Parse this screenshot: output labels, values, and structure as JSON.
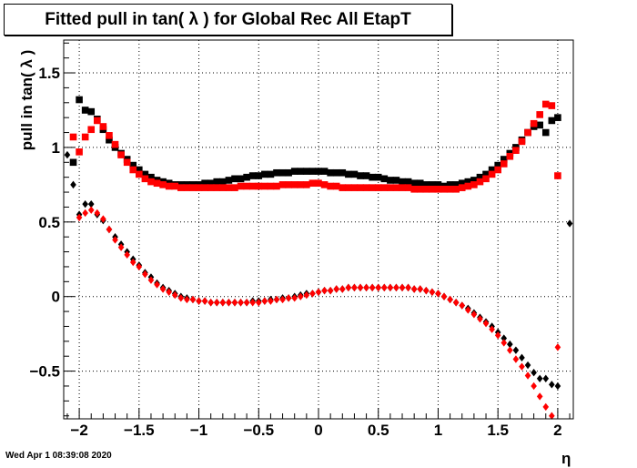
{
  "title": "Fitted pull in tan( λ ) for Global Rec All EtapT",
  "timestamp": "Wed Apr  1 08:39:08 2020",
  "chart_data": {
    "type": "scatter",
    "title": "Fitted pull in tan( λ ) for Global Rec All EtapT",
    "xlabel": "η",
    "ylabel": "pull in tan( λ )",
    "xlim": [
      -2.13,
      2.13
    ],
    "ylim": [
      -0.82,
      1.72
    ],
    "grid": true,
    "x_ticks": [
      -2,
      -1.5,
      -1,
      -0.5,
      0,
      0.5,
      1,
      1.5,
      2
    ],
    "x_tick_labels": [
      "−2",
      "−1.5",
      "−1",
      "−0.5",
      "0",
      "0.5",
      "1",
      "1.5",
      "2"
    ],
    "y_ticks": [
      -0.5,
      0,
      0.5,
      1,
      1.5
    ],
    "y_tick_labels": [
      "−0.5",
      "0",
      "0.5",
      "1",
      "1.5"
    ],
    "x": [
      -2.1,
      -2.05,
      -2.0,
      -1.95,
      -1.9,
      -1.85,
      -1.8,
      -1.75,
      -1.7,
      -1.65,
      -1.6,
      -1.55,
      -1.5,
      -1.45,
      -1.4,
      -1.35,
      -1.3,
      -1.25,
      -1.2,
      -1.15,
      -1.1,
      -1.05,
      -1.0,
      -0.95,
      -0.9,
      -0.85,
      -0.8,
      -0.75,
      -0.7,
      -0.65,
      -0.6,
      -0.55,
      -0.5,
      -0.45,
      -0.4,
      -0.35,
      -0.3,
      -0.25,
      -0.2,
      -0.15,
      -0.1,
      -0.05,
      0.0,
      0.05,
      0.1,
      0.15,
      0.2,
      0.25,
      0.3,
      0.35,
      0.4,
      0.45,
      0.5,
      0.55,
      0.6,
      0.65,
      0.7,
      0.75,
      0.8,
      0.85,
      0.9,
      0.95,
      1.0,
      1.05,
      1.1,
      1.15,
      1.2,
      1.25,
      1.3,
      1.35,
      1.4,
      1.45,
      1.5,
      1.55,
      1.6,
      1.65,
      1.7,
      1.75,
      1.8,
      1.85,
      1.9,
      1.95,
      2.0,
      2.05,
      2.1
    ],
    "series": [
      {
        "color": "#000000",
        "marker": "square",
        "values": [
          null,
          0.9,
          1.32,
          1.25,
          1.24,
          1.19,
          1.12,
          1.05,
          1.0,
          0.96,
          0.92,
          0.88,
          0.85,
          0.82,
          0.8,
          0.78,
          0.77,
          0.76,
          0.75,
          0.75,
          0.75,
          0.75,
          0.75,
          0.76,
          0.76,
          0.77,
          0.77,
          0.78,
          0.79,
          0.79,
          0.8,
          0.81,
          0.81,
          0.82,
          0.82,
          0.83,
          0.83,
          0.83,
          0.84,
          0.84,
          0.84,
          0.84,
          0.84,
          0.84,
          0.83,
          0.83,
          0.83,
          0.82,
          0.82,
          0.81,
          0.81,
          0.8,
          0.8,
          0.79,
          0.78,
          0.78,
          0.77,
          0.77,
          0.76,
          0.76,
          0.75,
          0.75,
          0.75,
          0.74,
          0.75,
          0.75,
          0.76,
          0.77,
          0.78,
          0.8,
          0.82,
          0.85,
          0.88,
          0.92,
          0.96,
          1.0,
          1.05,
          1.1,
          1.14,
          1.15,
          1.1,
          1.18,
          1.2,
          null,
          null
        ]
      },
      {
        "color": "#ff0000",
        "marker": "square",
        "values": [
          null,
          1.07,
          0.97,
          1.07,
          1.12,
          1.18,
          1.14,
          1.08,
          1.02,
          0.95,
          0.9,
          0.85,
          0.82,
          0.79,
          0.77,
          0.76,
          0.75,
          0.74,
          0.74,
          0.73,
          0.73,
          0.73,
          0.73,
          0.73,
          0.73,
          0.73,
          0.73,
          0.73,
          0.73,
          0.74,
          0.74,
          0.74,
          0.74,
          0.74,
          0.74,
          0.74,
          0.75,
          0.75,
          0.75,
          0.75,
          0.75,
          0.76,
          0.76,
          0.75,
          0.74,
          0.74,
          0.73,
          0.73,
          0.73,
          0.73,
          0.73,
          0.73,
          0.73,
          0.73,
          0.73,
          0.73,
          0.73,
          0.73,
          0.72,
          0.72,
          0.72,
          0.72,
          0.72,
          0.72,
          0.72,
          0.72,
          0.73,
          0.74,
          0.75,
          0.77,
          0.79,
          0.82,
          0.85,
          0.89,
          0.94,
          0.98,
          1.04,
          1.1,
          1.16,
          1.22,
          1.29,
          1.28,
          0.81,
          null,
          null
        ]
      },
      {
        "color": "#000000",
        "marker": "diamond",
        "values": [
          0.95,
          0.75,
          0.55,
          0.62,
          0.62,
          0.55,
          0.51,
          0.45,
          0.4,
          0.35,
          0.3,
          0.25,
          0.21,
          0.16,
          0.13,
          0.09,
          0.06,
          0.04,
          0.02,
          0.0,
          -0.01,
          -0.02,
          -0.03,
          -0.03,
          -0.04,
          -0.04,
          -0.04,
          -0.04,
          -0.04,
          -0.04,
          -0.04,
          -0.03,
          -0.03,
          -0.03,
          -0.02,
          -0.02,
          -0.01,
          -0.01,
          0.0,
          0.01,
          0.02,
          0.02,
          0.03,
          0.04,
          0.04,
          0.05,
          0.05,
          0.06,
          0.06,
          0.06,
          0.06,
          0.06,
          0.06,
          0.06,
          0.06,
          0.06,
          0.06,
          0.06,
          0.05,
          0.05,
          0.04,
          0.03,
          0.02,
          0.0,
          -0.02,
          -0.04,
          -0.06,
          -0.08,
          -0.11,
          -0.14,
          -0.17,
          -0.2,
          -0.24,
          -0.28,
          -0.32,
          -0.36,
          -0.41,
          -0.46,
          -0.51,
          -0.55,
          -0.55,
          -0.59,
          -0.6,
          null,
          0.49
        ]
      },
      {
        "color": "#ff0000",
        "marker": "diamond",
        "values": [
          null,
          null,
          0.53,
          0.56,
          0.58,
          0.56,
          0.52,
          0.45,
          0.38,
          0.33,
          0.28,
          0.23,
          0.2,
          0.15,
          0.11,
          0.08,
          0.05,
          0.03,
          0.01,
          -0.01,
          -0.02,
          -0.02,
          -0.03,
          -0.03,
          -0.04,
          -0.04,
          -0.04,
          -0.04,
          -0.04,
          -0.04,
          -0.04,
          -0.04,
          -0.04,
          -0.03,
          -0.03,
          -0.02,
          -0.02,
          -0.01,
          -0.01,
          0.0,
          0.01,
          0.02,
          0.03,
          0.04,
          0.04,
          0.05,
          0.05,
          0.06,
          0.06,
          0.06,
          0.06,
          0.06,
          0.06,
          0.06,
          0.06,
          0.06,
          0.06,
          0.06,
          0.05,
          0.05,
          0.04,
          0.03,
          0.02,
          0.0,
          -0.02,
          -0.04,
          -0.06,
          -0.09,
          -0.12,
          -0.15,
          -0.18,
          -0.22,
          -0.26,
          -0.31,
          -0.36,
          -0.42,
          -0.47,
          -0.53,
          -0.6,
          -0.67,
          -0.74,
          -0.8,
          -0.34,
          null,
          null
        ]
      }
    ]
  }
}
